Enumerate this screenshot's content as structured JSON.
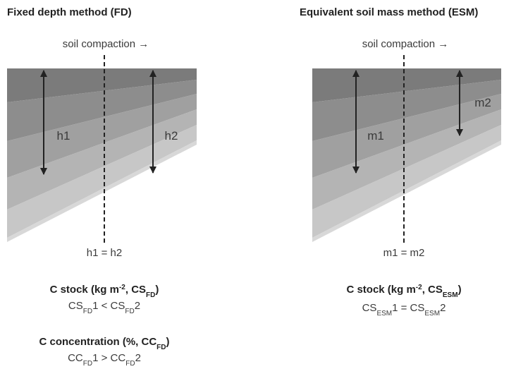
{
  "left": {
    "title": "Fixed depth method (FD)",
    "compaction": "soil compaction →",
    "arrow_labels": [
      "h1",
      "h2"
    ],
    "equality": "h1 = h2",
    "stock": {
      "label": [
        "C stock (kg m",
        "-2",
        ", CS",
        "FD",
        ")"
      ],
      "relation": [
        "CS",
        "FD",
        "1 < CS",
        "FD",
        "2"
      ]
    },
    "concentration": {
      "label": [
        "C concentration (%, CC",
        "FD",
        ")"
      ],
      "relation": [
        "CC",
        "FD",
        "1 > CC",
        "FD",
        "2"
      ]
    }
  },
  "right": {
    "title": "Equivalent soil mass method (ESM)",
    "compaction": "soil compaction →",
    "arrow_labels": [
      "m1",
      "m2"
    ],
    "equality": "m1 = m2",
    "stock": {
      "label": [
        "C stock (kg m",
        "-2",
        ", CS",
        "ESM",
        ")"
      ],
      "relation": [
        "CS",
        "ESM",
        "1 = CS",
        "ESM",
        "2"
      ]
    }
  }
}
